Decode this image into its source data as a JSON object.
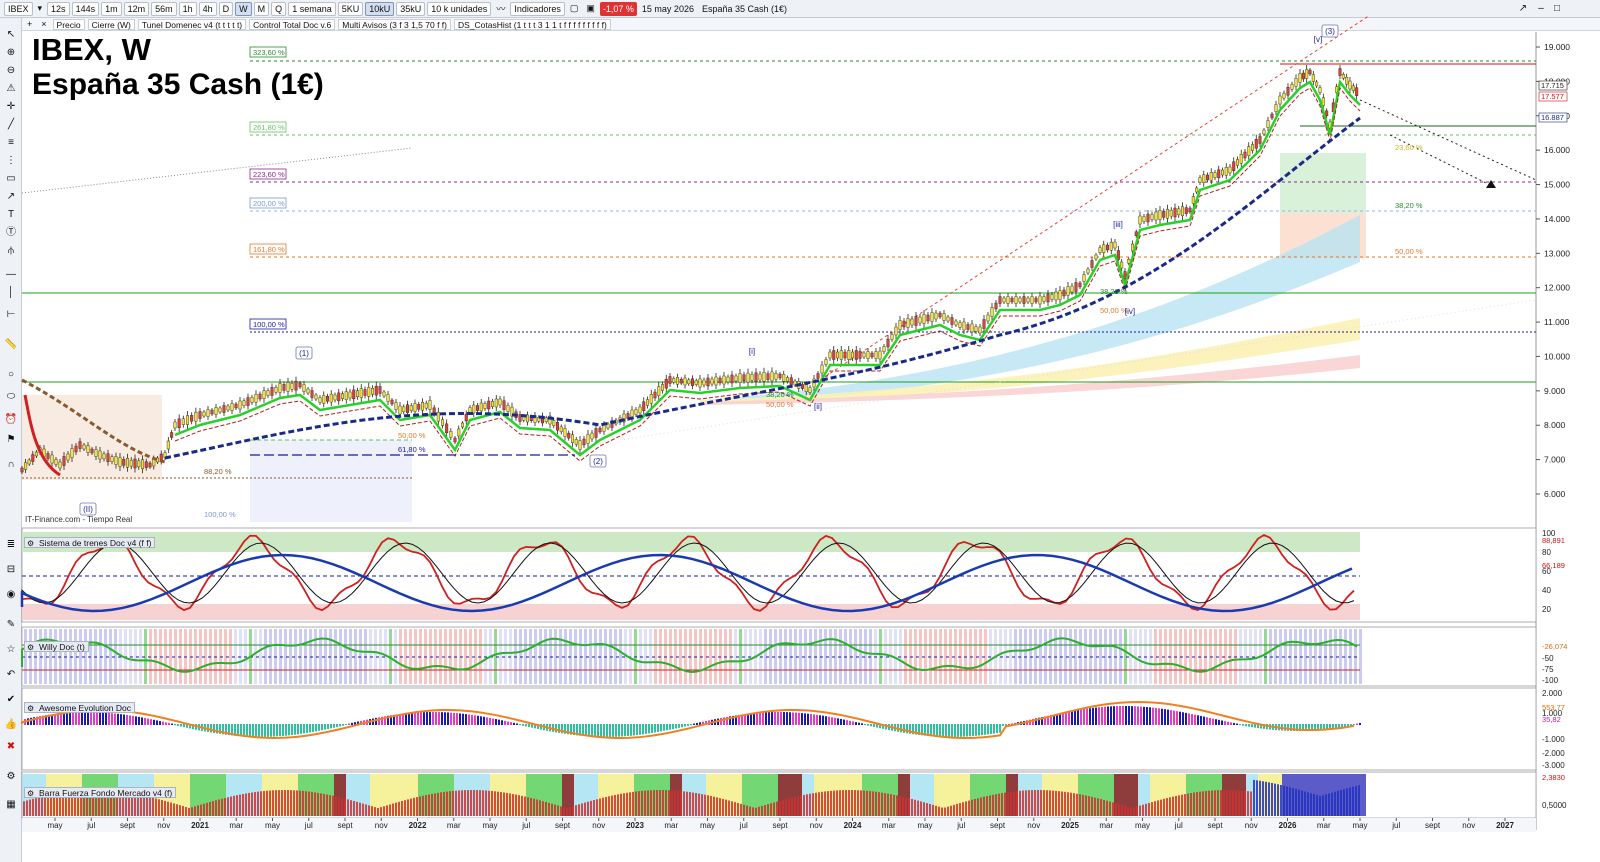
{
  "toolbar": {
    "symbol": "IBEX",
    "timeframes": [
      "12s",
      "144s",
      "1m",
      "12m",
      "56m",
      "1h",
      "4h",
      "D",
      "W",
      "M",
      "Q"
    ],
    "active_timeframe": "W",
    "period": "1 semana",
    "units": [
      "5KU",
      "10kU",
      "35kU"
    ],
    "active_unit": "10kU",
    "units_select": "10 k unidades",
    "indicators_label": "Indicadores",
    "change_badge": "-1,07 %",
    "date": "15 may 2026",
    "instrument_name": "España 35 Cash (1€)"
  },
  "toolbar2": {
    "items": [
      "Precio",
      "Cierre (W)",
      "Tunel Domenec v4 (t t t t t)",
      "Control Total Doc v.6",
      "Multi Avisos (3 f 3 1,5 70 f f)",
      "DS_CotasHist (1 t t t 3 1 1 t f f f f f f f f f)"
    ]
  },
  "main_chart": {
    "title_line1": "IBEX, W",
    "title_line2": "España 35 Cash (1€)",
    "watermark": "IT-Finance.com - Tiempo Real",
    "price_labels": [
      "19.000",
      "18.000",
      "17.000",
      "16.000",
      "15.000",
      "14.000",
      "13.000",
      "12.000",
      "11.000",
      "10.000",
      "9.000",
      "8.000",
      "7.000",
      "6.000"
    ],
    "price_tags": [
      {
        "text": "17.715",
        "color": "#222222"
      },
      {
        "text": "17.577",
        "color": "#d01010"
      },
      {
        "text": "16.887",
        "color": "#1a2a8a"
      }
    ],
    "fib_left": [
      "323,60 %",
      "261,80 %",
      "223,60 %",
      "200,00 %",
      "161,80 %",
      "100,00 %"
    ],
    "fib_left_colors": [
      "#2a8a2a",
      "#66c266",
      "#8a2a8a",
      "#7a9ad2",
      "#e07a2a",
      "#1a1aa0"
    ],
    "fib_right": [
      "23,60 %",
      "38,20 %",
      "50,00 %"
    ],
    "fib_mid": [
      "50,00 %",
      "61,80 %",
      "88,20 %",
      "100,00 %",
      "38,20 %",
      "50,00 %",
      "38,20 %",
      "50,00 %"
    ],
    "waves": [
      "(1)",
      "(2)",
      "(3)",
      "(II)",
      "[i]",
      "[ii]",
      "[iii]",
      "[iv]",
      "[v]"
    ]
  },
  "x_axis": [
    "may",
    "jul",
    "sept",
    "nov",
    "2021",
    "mar",
    "may",
    "jul",
    "sept",
    "nov",
    "2022",
    "mar",
    "may",
    "jul",
    "sept",
    "nov",
    "2023",
    "mar",
    "may",
    "jul",
    "sept",
    "nov",
    "2024",
    "mar",
    "may",
    "jul",
    "sept",
    "nov",
    "2025",
    "mar",
    "may",
    "jul",
    "sept",
    "nov",
    "2026",
    "mar",
    "may",
    "jul",
    "sept",
    "nov",
    "2027"
  ],
  "panes": [
    {
      "title": "Sistema de trenes Doc v4 (f f)",
      "axis": [
        "100",
        "80",
        "60",
        "40",
        "20"
      ],
      "tags": [
        {
          "text": "88,891",
          "color": "#d01010"
        },
        {
          "text": "66,189",
          "color": "#d01010"
        }
      ]
    },
    {
      "title": "Willy Doc (t)",
      "axis": [
        "-50",
        "-75",
        "-100"
      ],
      "tags": [
        {
          "text": "-26,074",
          "color": "#d07010"
        }
      ]
    },
    {
      "title": "Awesome Evolution Doc",
      "axis": [
        "2.000",
        "1.000",
        "-1.000",
        "-2.000",
        "-3.000"
      ],
      "tags": [
        {
          "text": "553,77",
          "color": "#d07010"
        },
        {
          "text": "35,82",
          "color": "#c020a0"
        }
      ]
    },
    {
      "title": "Barra Fuerza Fondo Mercado v4 (f)",
      "axis": [
        "0,5000"
      ],
      "tags": [
        {
          "text": "2,3830",
          "color": "#d01010"
        }
      ]
    }
  ]
}
